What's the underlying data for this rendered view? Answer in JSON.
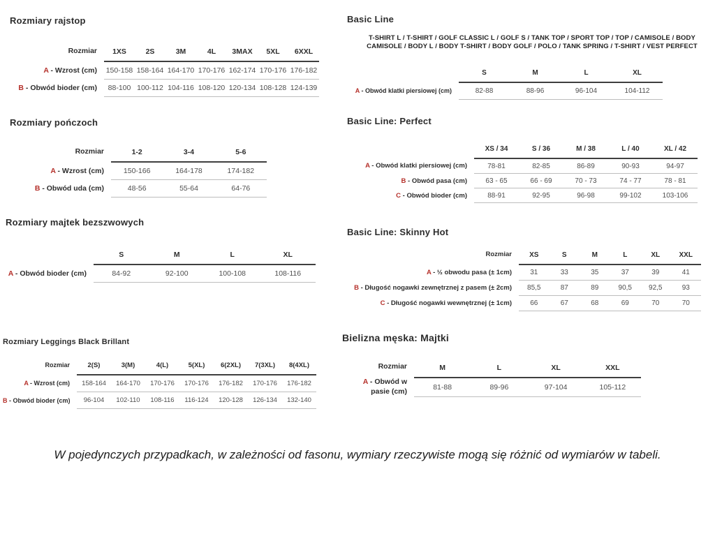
{
  "colors": {
    "accent": "#b5302a"
  },
  "footnote": "W pojedynczych przypadkach, w zależności od fasonu, wymiary rzeczywiste mogą się różnić od wymiarów w tabeli.",
  "sections": {
    "rajstop": {
      "title": "Rozmiary rajstop",
      "table": {
        "corner": "Rozmiar",
        "columns": [
          "1XS",
          "2S",
          "3M",
          "4L",
          "3MAX",
          "5XL",
          "6XXL"
        ],
        "rows": [
          {
            "letter": "A",
            "label": "Wzrost (cm)",
            "values": [
              "150-158",
              "158-164",
              "164-170",
              "170-176",
              "162-174",
              "170-176",
              "176-182"
            ]
          },
          {
            "letter": "B",
            "label": "Obwód bioder (cm)",
            "values": [
              "88-100",
              "100-112",
              "104-116",
              "108-120",
              "120-134",
              "108-128",
              "124-139"
            ]
          }
        ]
      }
    },
    "ponczochy": {
      "title": "Rozmiary pończoch",
      "table": {
        "corner": "Rozmiar",
        "columns": [
          "1-2",
          "3-4",
          "5-6"
        ],
        "rows": [
          {
            "letter": "A",
            "label": "Wzrost (cm)",
            "values": [
              "150-166",
              "164-178",
              "174-182"
            ]
          },
          {
            "letter": "B",
            "label": "Obwód uda (cm)",
            "values": [
              "48-56",
              "55-64",
              "64-76"
            ]
          }
        ]
      }
    },
    "majtek_bezszwowe": {
      "title": "Rozmiary majtek bezszwowych",
      "table": {
        "corner": "",
        "columns": [
          "S",
          "M",
          "L",
          "XL"
        ],
        "rows": [
          {
            "letter": "A",
            "label": "Obwód bioder (cm)",
            "values": [
              "84-92",
              "92-100",
              "100-108",
              "108-116"
            ]
          }
        ]
      }
    },
    "leggings": {
      "title": "Rozmiary Leggings Black Brillant",
      "table": {
        "corner": "Rozmiar",
        "columns": [
          "2(S)",
          "3(M)",
          "4(L)",
          "5(XL)",
          "6(2XL)",
          "7(3XL)",
          "8(4XL)"
        ],
        "rows": [
          {
            "letter": "A",
            "label": "Wzrost (cm)",
            "values": [
              "158-164",
              "164-170",
              "170-176",
              "170-176",
              "176-182",
              "170-176",
              "176-182"
            ]
          },
          {
            "letter": "B",
            "label": "Obwód bioder (cm)",
            "values": [
              "96-104",
              "102-110",
              "108-116",
              "116-124",
              "120-128",
              "126-134",
              "132-140"
            ]
          }
        ]
      }
    },
    "basic_line": {
      "title": "Basic Line",
      "subtitle_line1": "T-SHIRT L / T-SHIRT / GOLF CLASSIC L / GOLF S / TANK TOP / SPORT TOP / TOP / CAMISOLE / BODY",
      "subtitle_line2": "CAMISOLE / BODY L / BODY T-SHIRT / BODY GOLF / POLO / TANK SPRING / T-SHIRT / VEST PERFECT",
      "table": {
        "corner": "",
        "columns": [
          "S",
          "M",
          "L",
          "XL"
        ],
        "rows": [
          {
            "letter": "A",
            "label": "Obwód klatki piersiowej (cm)",
            "values": [
              "82-88",
              "88-96",
              "96-104",
              "104-112"
            ]
          }
        ]
      }
    },
    "basic_perfect": {
      "title": "Basic Line: Perfect",
      "table": {
        "corner": "",
        "columns": [
          "XS / 34",
          "S / 36",
          "M / 38",
          "L / 40",
          "XL / 42"
        ],
        "rows": [
          {
            "letter": "A",
            "label": "Obwód klatki piersiowej (cm)",
            "values": [
              "78-81",
              "82-85",
              "86-89",
              "90-93",
              "94-97"
            ]
          },
          {
            "letter": "B",
            "label": "Obwód pasa (cm)",
            "values": [
              "63 - 65",
              "66 - 69",
              "70 - 73",
              "74 - 77",
              "78 - 81"
            ]
          },
          {
            "letter": "C",
            "label": "Obwód bioder (cm)",
            "values": [
              "88-91",
              "92-95",
              "96-98",
              "99-102",
              "103-106"
            ]
          }
        ]
      }
    },
    "skinny_hot": {
      "title": "Basic Line: Skinny Hot",
      "table": {
        "corner": "Rozmiar",
        "columns": [
          "XS",
          "S",
          "M",
          "L",
          "XL",
          "XXL"
        ],
        "rows": [
          {
            "letter": "A",
            "label": "½ obwodu pasa (± 1cm)",
            "values": [
              "31",
              "33",
              "35",
              "37",
              "39",
              "41"
            ]
          },
          {
            "letter": "B",
            "label": "Długość nogawki zewnętrznej z pasem (± 2cm)",
            "values": [
              "85,5",
              "87",
              "89",
              "90,5",
              "92,5",
              "93"
            ]
          },
          {
            "letter": "C",
            "label": "Długość nogawki wewnętrznej (± 1cm)",
            "values": [
              "66",
              "67",
              "68",
              "69",
              "70",
              "70"
            ]
          }
        ]
      }
    },
    "majtki_meskie": {
      "title": "Bielizna męska: Majtki",
      "table": {
        "corner": "Rozmiar",
        "columns": [
          "M",
          "L",
          "XL",
          "XXL"
        ],
        "rows": [
          {
            "letter": "A",
            "label": "Obwód w pasie (cm)",
            "values": [
              "81-88",
              "89-96",
              "97-104",
              "105-112"
            ]
          }
        ]
      }
    }
  }
}
